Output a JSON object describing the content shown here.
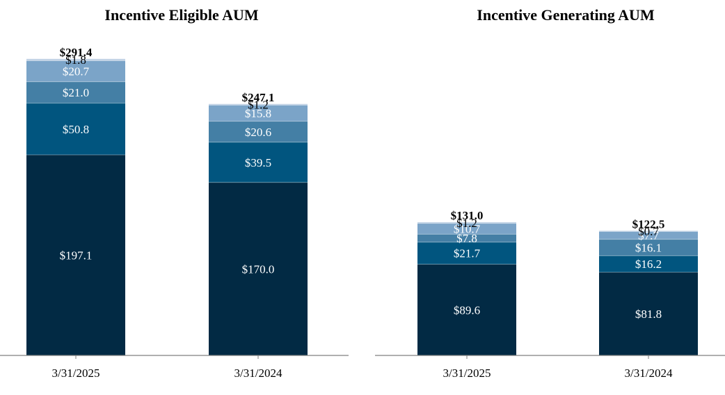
{
  "chart_data": [
    {
      "type": "bar",
      "stacked": true,
      "title": "Incentive Eligible AUM",
      "categories": [
        "3/31/2025",
        "3/31/2024"
      ],
      "series": [
        {
          "name": "Segment 1",
          "color": "#022a44",
          "text_color": "#ffffff",
          "values": [
            197.1,
            170.0
          ],
          "labels": [
            "$197.1",
            "$170.0"
          ]
        },
        {
          "name": "Segment 2",
          "color": "#01557f",
          "text_color": "#ffffff",
          "values": [
            50.8,
            39.5
          ],
          "labels": [
            "$50.8",
            "$39.5"
          ]
        },
        {
          "name": "Segment 3",
          "color": "#447fa5",
          "text_color": "#ffffff",
          "values": [
            21.0,
            20.6
          ],
          "labels": [
            "$21.0",
            "$20.6"
          ]
        },
        {
          "name": "Segment 4",
          "color": "#7ba4c8",
          "text_color": "#ffffff",
          "values": [
            20.7,
            15.8
          ],
          "labels": [
            "$20.7",
            "$15.8"
          ]
        },
        {
          "name": "Segment 5",
          "color": "#c2d3e5",
          "text_color": "#000000",
          "values": [
            1.8,
            1.2
          ],
          "labels": [
            "$1.8",
            "$1.2"
          ]
        }
      ],
      "totals": [
        291.4,
        247.1
      ],
      "total_labels": [
        "$291.4",
        "$247.1"
      ],
      "ylim": [
        0,
        300
      ]
    },
    {
      "type": "bar",
      "stacked": true,
      "title": "Incentive Generating AUM",
      "categories": [
        "3/31/2025",
        "3/31/2024"
      ],
      "series": [
        {
          "name": "Segment 1",
          "color": "#022a44",
          "text_color": "#ffffff",
          "values": [
            89.6,
            81.8
          ],
          "labels": [
            "$89.6",
            "$81.8"
          ]
        },
        {
          "name": "Segment 2",
          "color": "#01557f",
          "text_color": "#ffffff",
          "values": [
            21.7,
            16.2
          ],
          "labels": [
            "$21.7",
            "$16.2"
          ]
        },
        {
          "name": "Segment 3",
          "color": "#447fa5",
          "text_color": "#ffffff",
          "values": [
            7.8,
            16.1
          ],
          "labels": [
            "$7.8",
            "$16.1"
          ]
        },
        {
          "name": "Segment 4",
          "color": "#7ba4c8",
          "text_color": "#ffffff",
          "values": [
            10.7,
            7.7
          ],
          "labels": [
            "$10.7",
            "$7.7"
          ]
        },
        {
          "name": "Segment 5",
          "color": "#c2d3e5",
          "text_color": "#000000",
          "values": [
            1.2,
            0.7
          ],
          "labels": [
            "$1.2",
            "$0.7"
          ]
        }
      ],
      "totals": [
        131.0,
        122.5
      ],
      "total_labels": [
        "$131.0",
        "$122.5"
      ],
      "ylim": [
        0,
        300
      ]
    }
  ]
}
